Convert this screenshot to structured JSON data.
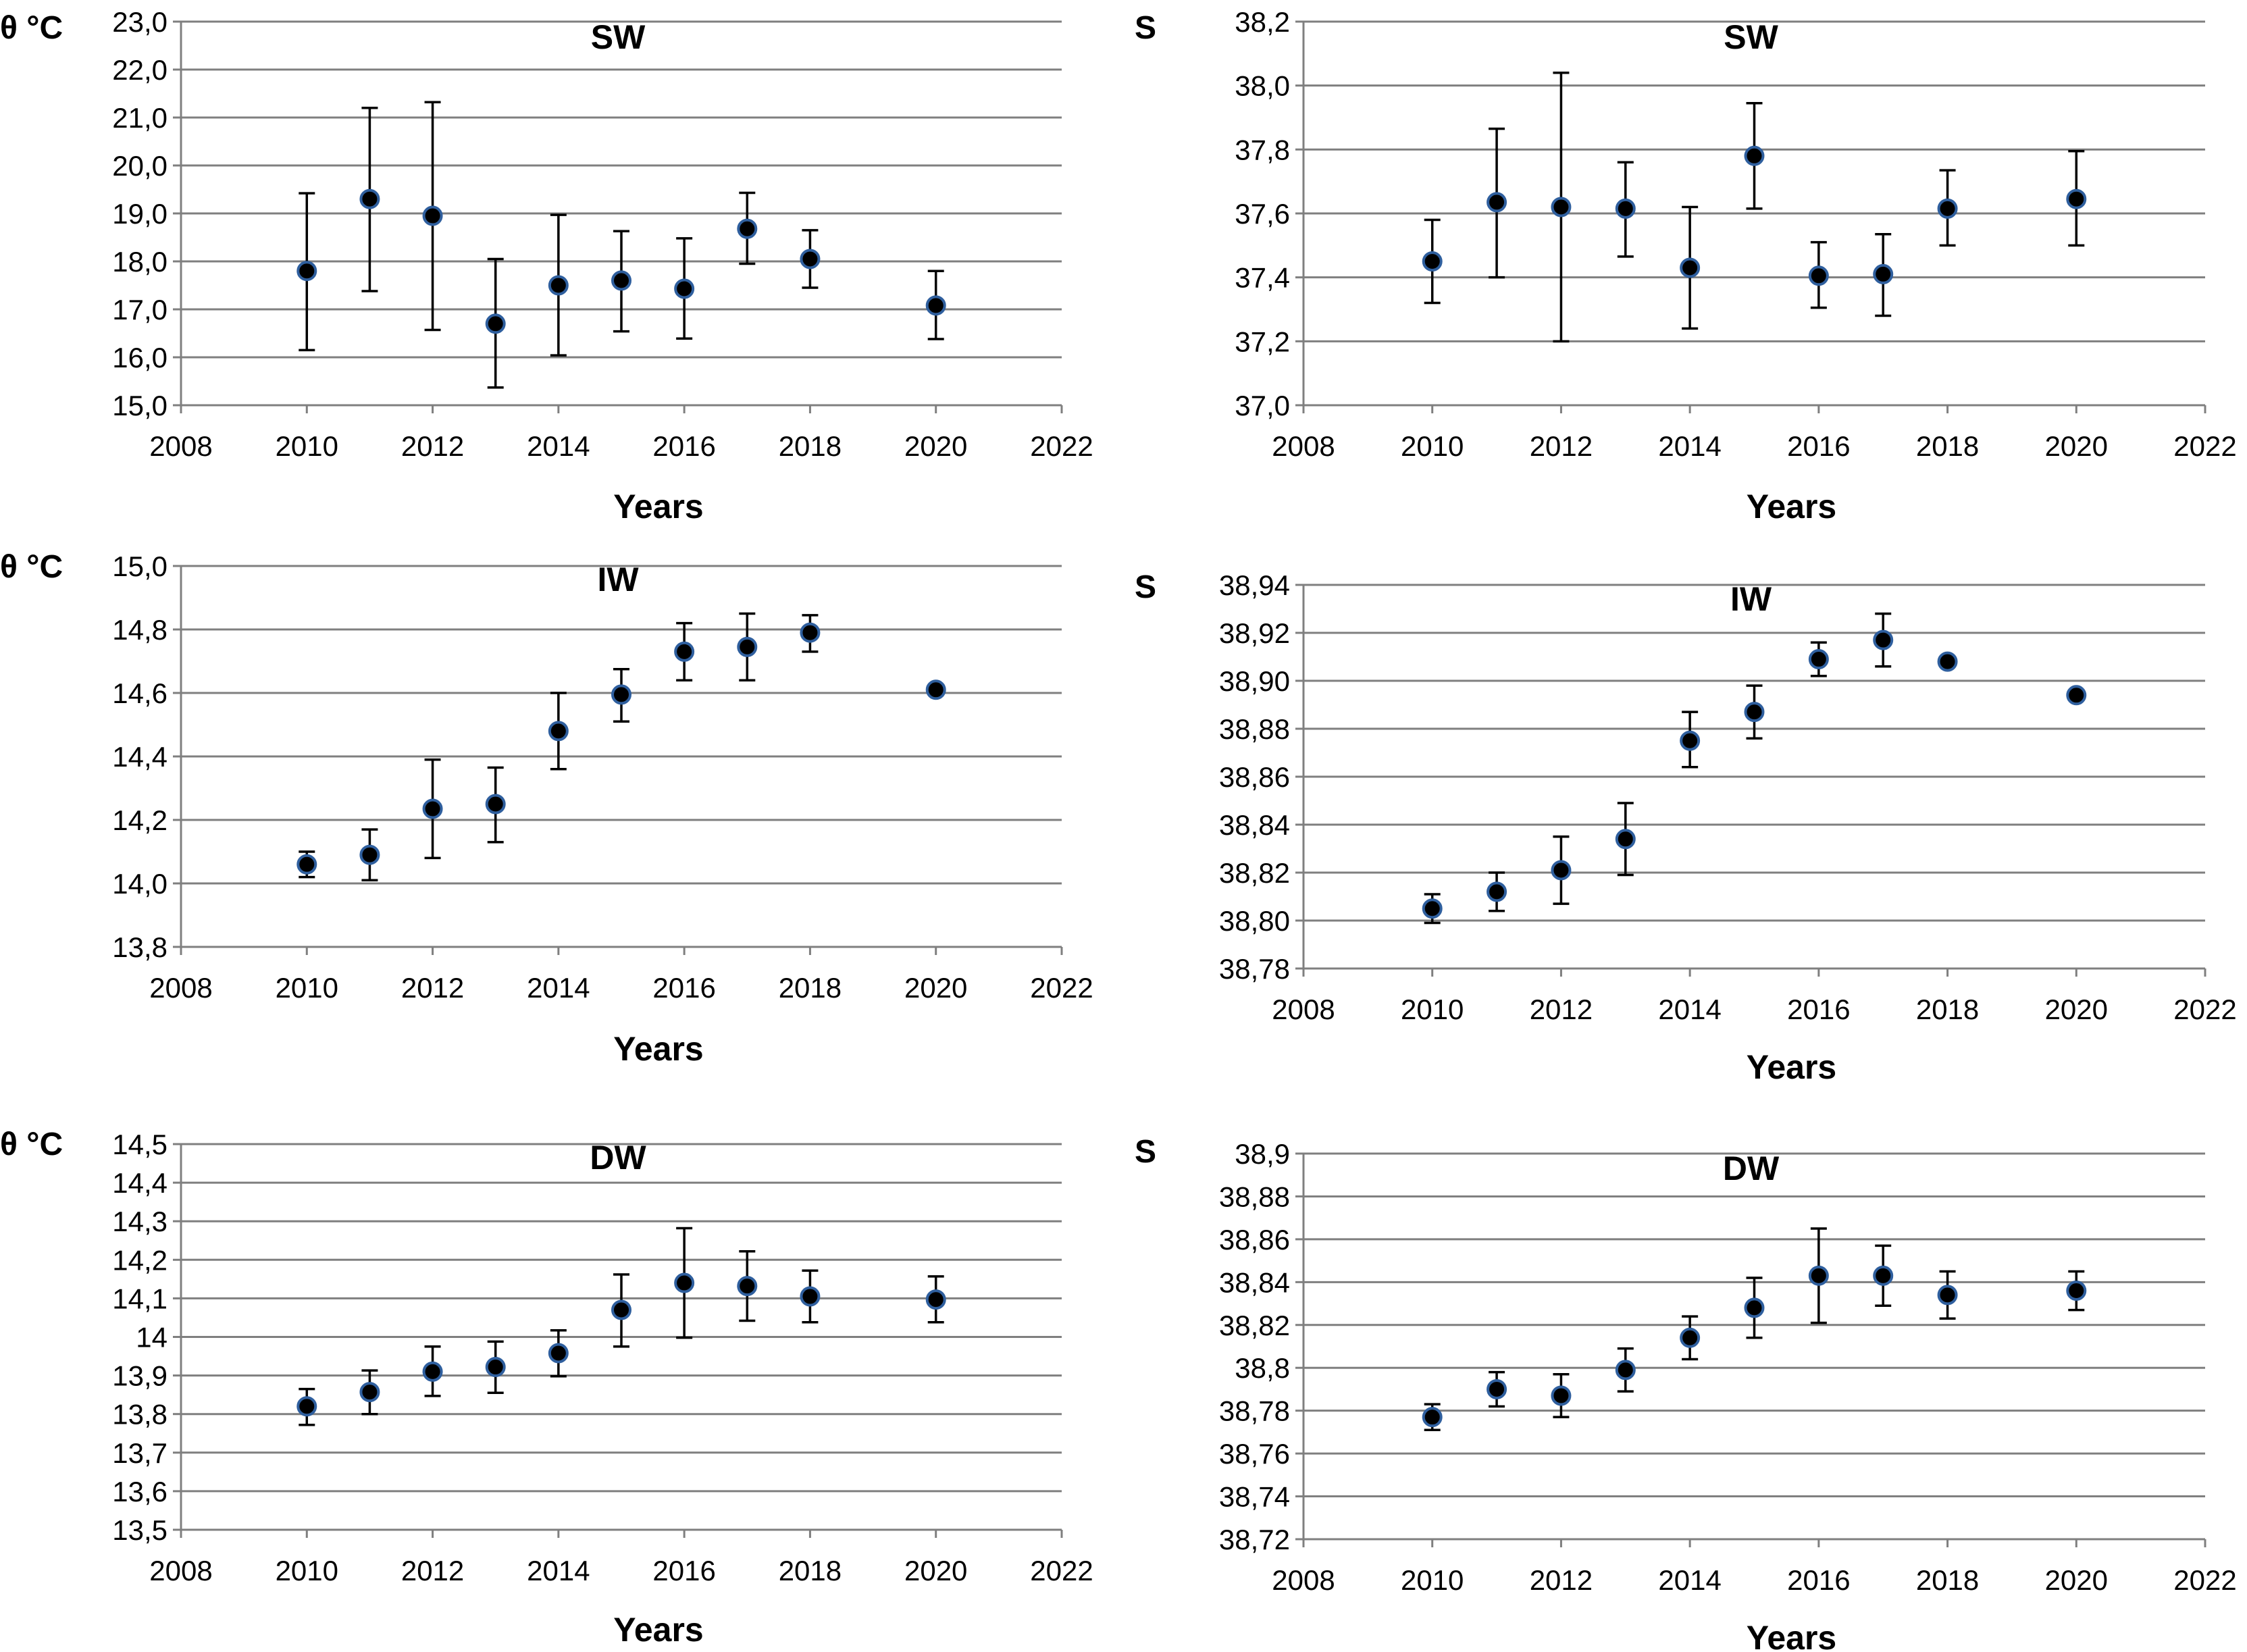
{
  "chart_data": [
    {
      "id": "theta-sw",
      "type": "scatter",
      "title": "SW",
      "ylabel": "θ °C",
      "xlabel": "Years",
      "xlim": [
        2008,
        2022
      ],
      "xticks": [
        2008,
        2010,
        2012,
        2014,
        2016,
        2018,
        2020,
        2022
      ],
      "xtick_labels": [
        "2008",
        "2010",
        "2012",
        "2014",
        "2016",
        "2018",
        "2020",
        "2022"
      ],
      "ylim": [
        15.0,
        23.0
      ],
      "yticks": [
        15,
        16,
        17,
        18,
        19,
        20,
        21,
        22,
        23
      ],
      "ytick_labels": [
        "15,0",
        "16,0",
        "17,0",
        "18,0",
        "19,0",
        "20,0",
        "21,0",
        "22,0",
        "23,0"
      ],
      "grid": true,
      "points": [
        {
          "x": 2010,
          "y": 17.8,
          "low": 16.15,
          "high": 19.42
        },
        {
          "x": 2011,
          "y": 19.3,
          "low": 17.38,
          "high": 21.2
        },
        {
          "x": 2012,
          "y": 18.95,
          "low": 16.57,
          "high": 21.32
        },
        {
          "x": 2013,
          "y": 16.7,
          "low": 15.37,
          "high": 18.05
        },
        {
          "x": 2014,
          "y": 17.5,
          "low": 16.04,
          "high": 18.97
        },
        {
          "x": 2015,
          "y": 17.6,
          "low": 16.54,
          "high": 18.63
        },
        {
          "x": 2016,
          "y": 17.43,
          "low": 16.39,
          "high": 18.48
        },
        {
          "x": 2017,
          "y": 18.68,
          "low": 17.95,
          "high": 19.43
        },
        {
          "x": 2018,
          "y": 18.05,
          "low": 17.45,
          "high": 18.65
        },
        {
          "x": 2020,
          "y": 17.08,
          "low": 16.38,
          "high": 17.8
        }
      ]
    },
    {
      "id": "salinity-sw",
      "type": "scatter",
      "title": "SW",
      "ylabel": "S",
      "xlabel": "Years",
      "xlim": [
        2008,
        2022
      ],
      "xticks": [
        2008,
        2010,
        2012,
        2014,
        2016,
        2018,
        2020,
        2022
      ],
      "xtick_labels": [
        "2008",
        "2010",
        "2012",
        "2014",
        "2016",
        "2018",
        "2020",
        "2022"
      ],
      "ylim": [
        37.0,
        38.2
      ],
      "yticks": [
        37.0,
        37.2,
        37.4,
        37.6,
        37.8,
        38.0,
        38.2
      ],
      "ytick_labels": [
        "37,0",
        "37,2",
        "37,4",
        "37,6",
        "37,8",
        "38,0",
        "38,2"
      ],
      "grid": true,
      "points": [
        {
          "x": 2010,
          "y": 37.45,
          "low": 37.32,
          "high": 37.58
        },
        {
          "x": 2011,
          "y": 37.635,
          "low": 37.4,
          "high": 37.865
        },
        {
          "x": 2012,
          "y": 37.62,
          "low": 37.2,
          "high": 38.04
        },
        {
          "x": 2013,
          "y": 37.615,
          "low": 37.465,
          "high": 37.76
        },
        {
          "x": 2014,
          "y": 37.43,
          "low": 37.24,
          "high": 37.62
        },
        {
          "x": 2015,
          "y": 37.78,
          "low": 37.615,
          "high": 37.945
        },
        {
          "x": 2016,
          "y": 37.405,
          "low": 37.305,
          "high": 37.51
        },
        {
          "x": 2017,
          "y": 37.41,
          "low": 37.28,
          "high": 37.535
        },
        {
          "x": 2018,
          "y": 37.615,
          "low": 37.5,
          "high": 37.735
        },
        {
          "x": 2020,
          "y": 37.645,
          "low": 37.5,
          "high": 37.795
        }
      ]
    },
    {
      "id": "theta-iw",
      "type": "scatter",
      "title": "IW",
      "ylabel": "θ °C",
      "xlabel": "Years",
      "xlim": [
        2008,
        2022
      ],
      "xticks": [
        2008,
        2010,
        2012,
        2014,
        2016,
        2018,
        2020,
        2022
      ],
      "xtick_labels": [
        "2008",
        "2010",
        "2012",
        "2014",
        "2016",
        "2018",
        "2020",
        "2022"
      ],
      "ylim": [
        13.8,
        15.0
      ],
      "yticks": [
        13.8,
        14.0,
        14.2,
        14.4,
        14.6,
        14.8,
        15.0
      ],
      "ytick_labels": [
        "13,8",
        "14,0",
        "14,2",
        "14,4",
        "14,6",
        "14,8",
        "15,0"
      ],
      "grid": true,
      "points": [
        {
          "x": 2010,
          "y": 14.06,
          "low": 14.02,
          "high": 14.1
        },
        {
          "x": 2011,
          "y": 14.09,
          "low": 14.01,
          "high": 14.17
        },
        {
          "x": 2012,
          "y": 14.235,
          "low": 14.08,
          "high": 14.39
        },
        {
          "x": 2013,
          "y": 14.25,
          "low": 14.13,
          "high": 14.365
        },
        {
          "x": 2014,
          "y": 14.48,
          "low": 14.36,
          "high": 14.6
        },
        {
          "x": 2015,
          "y": 14.595,
          "low": 14.51,
          "high": 14.675
        },
        {
          "x": 2016,
          "y": 14.73,
          "low": 14.64,
          "high": 14.82
        },
        {
          "x": 2017,
          "y": 14.745,
          "low": 14.64,
          "high": 14.85
        },
        {
          "x": 2018,
          "y": 14.79,
          "low": 14.73,
          "high": 14.845
        },
        {
          "x": 2020,
          "y": 14.61,
          "low": 14.61,
          "high": 14.61
        }
      ]
    },
    {
      "id": "salinity-iw",
      "type": "scatter",
      "title": "IW",
      "ylabel": "S",
      "xlabel": "Years",
      "xlim": [
        2008,
        2022
      ],
      "xticks": [
        2008,
        2010,
        2012,
        2014,
        2016,
        2018,
        2020,
        2022
      ],
      "xtick_labels": [
        "2008",
        "2010",
        "2012",
        "2014",
        "2016",
        "2018",
        "2020",
        "2022"
      ],
      "ylim": [
        38.78,
        38.94
      ],
      "yticks": [
        38.78,
        38.8,
        38.82,
        38.84,
        38.86,
        38.88,
        38.9,
        38.92,
        38.94
      ],
      "ytick_labels": [
        "38,78",
        "38,80",
        "38,82",
        "38,84",
        "38,86",
        "38,88",
        "38,90",
        "38,92",
        "38,94"
      ],
      "grid": true,
      "points": [
        {
          "x": 2010,
          "y": 38.805,
          "low": 38.799,
          "high": 38.811
        },
        {
          "x": 2011,
          "y": 38.812,
          "low": 38.804,
          "high": 38.82
        },
        {
          "x": 2012,
          "y": 38.821,
          "low": 38.807,
          "high": 38.835
        },
        {
          "x": 2013,
          "y": 38.834,
          "low": 38.819,
          "high": 38.849
        },
        {
          "x": 2014,
          "y": 38.875,
          "low": 38.864,
          "high": 38.887
        },
        {
          "x": 2015,
          "y": 38.887,
          "low": 38.876,
          "high": 38.898
        },
        {
          "x": 2016,
          "y": 38.909,
          "low": 38.902,
          "high": 38.916
        },
        {
          "x": 2017,
          "y": 38.917,
          "low": 38.906,
          "high": 38.928
        },
        {
          "x": 2018,
          "y": 38.908,
          "low": 38.908,
          "high": 38.908
        },
        {
          "x": 2020,
          "y": 38.894,
          "low": 38.894,
          "high": 38.894
        }
      ]
    },
    {
      "id": "theta-dw",
      "type": "scatter",
      "title": "DW",
      "ylabel": "θ °C",
      "xlabel": "Years",
      "xlim": [
        2008,
        2022
      ],
      "xticks": [
        2008,
        2010,
        2012,
        2014,
        2016,
        2018,
        2020,
        2022
      ],
      "xtick_labels": [
        "2008",
        "2010",
        "2012",
        "2014",
        "2016",
        "2018",
        "2020",
        "2022"
      ],
      "ylim": [
        13.5,
        14.5
      ],
      "yticks": [
        13.5,
        13.6,
        13.7,
        13.8,
        13.9,
        14.0,
        14.1,
        14.2,
        14.3,
        14.4,
        14.5
      ],
      "ytick_labels": [
        "13,5",
        "13,6",
        "13,7",
        "13,8",
        "13,9",
        "14",
        "14,1",
        "14,2",
        "14,3",
        "14,4",
        "14,5"
      ],
      "grid": true,
      "points": [
        {
          "x": 2010,
          "y": 13.82,
          "low": 13.772,
          "high": 13.865
        },
        {
          "x": 2011,
          "y": 13.857,
          "low": 13.8,
          "high": 13.913
        },
        {
          "x": 2012,
          "y": 13.91,
          "low": 13.847,
          "high": 13.975
        },
        {
          "x": 2013,
          "y": 13.922,
          "low": 13.855,
          "high": 13.988
        },
        {
          "x": 2014,
          "y": 13.958,
          "low": 13.898,
          "high": 14.017
        },
        {
          "x": 2015,
          "y": 14.07,
          "low": 13.975,
          "high": 14.162
        },
        {
          "x": 2016,
          "y": 14.14,
          "low": 13.998,
          "high": 14.282
        },
        {
          "x": 2017,
          "y": 14.132,
          "low": 14.042,
          "high": 14.222
        },
        {
          "x": 2018,
          "y": 14.105,
          "low": 14.038,
          "high": 14.172
        },
        {
          "x": 2020,
          "y": 14.097,
          "low": 14.038,
          "high": 14.157
        }
      ]
    },
    {
      "id": "salinity-dw",
      "type": "scatter",
      "title": "DW",
      "ylabel": "S",
      "xlabel": "Years",
      "xlim": [
        2008,
        2022
      ],
      "xticks": [
        2008,
        2010,
        2012,
        2014,
        2016,
        2018,
        2020,
        2022
      ],
      "xtick_labels": [
        "2008",
        "2010",
        "2012",
        "2014",
        "2016",
        "2018",
        "2020",
        "2022"
      ],
      "ylim": [
        38.72,
        38.9
      ],
      "yticks": [
        38.72,
        38.74,
        38.76,
        38.78,
        38.8,
        38.82,
        38.84,
        38.86,
        38.88,
        38.9
      ],
      "ytick_labels": [
        "38,72",
        "38,74",
        "38,76",
        "38,78",
        "38,8",
        "38,82",
        "38,84",
        "38,86",
        "38,88",
        "38,9"
      ],
      "grid": true,
      "points": [
        {
          "x": 2010,
          "y": 38.777,
          "low": 38.771,
          "high": 38.783
        },
        {
          "x": 2011,
          "y": 38.79,
          "low": 38.782,
          "high": 38.798
        },
        {
          "x": 2012,
          "y": 38.787,
          "low": 38.777,
          "high": 38.797
        },
        {
          "x": 2013,
          "y": 38.799,
          "low": 38.789,
          "high": 38.809
        },
        {
          "x": 2014,
          "y": 38.814,
          "low": 38.804,
          "high": 38.824
        },
        {
          "x": 2015,
          "y": 38.828,
          "low": 38.814,
          "high": 38.842
        },
        {
          "x": 2016,
          "y": 38.843,
          "low": 38.821,
          "high": 38.865
        },
        {
          "x": 2017,
          "y": 38.843,
          "low": 38.829,
          "high": 38.857
        },
        {
          "x": 2018,
          "y": 38.834,
          "low": 38.823,
          "high": 38.845
        },
        {
          "x": 2020,
          "y": 38.836,
          "low": 38.827,
          "high": 38.845
        }
      ]
    }
  ]
}
